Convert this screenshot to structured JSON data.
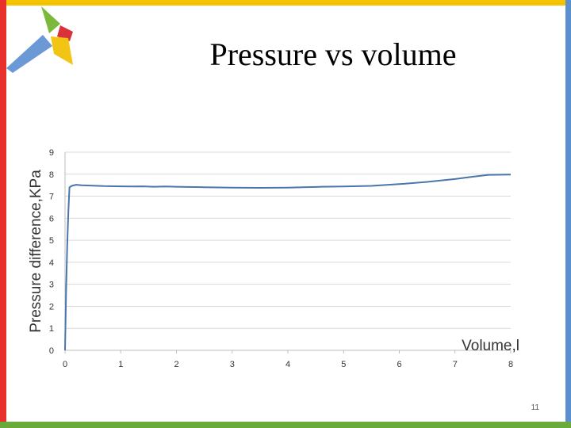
{
  "slide": {
    "title": "Pressure vs volume",
    "number": "11",
    "accent_colors": {
      "top": "#f5c400",
      "left": "#e8302c",
      "right": "#5b8fce",
      "bottom": "#6aaa3a"
    },
    "logo": "star-logo"
  },
  "chart_data": {
    "type": "line",
    "xlabel": "Volume,l",
    "ylabel": "Pressure difference,KPa",
    "xlim": [
      0,
      8
    ],
    "ylim": [
      0,
      9
    ],
    "x_ticks": [
      "0",
      "1",
      "2",
      "3",
      "4",
      "5",
      "6",
      "7",
      "8"
    ],
    "y_ticks": [
      "0",
      "1",
      "2",
      "3",
      "4",
      "5",
      "6",
      "7",
      "8",
      "9"
    ],
    "grid": "horizontal",
    "line_color": "#4a76ac",
    "series": [
      {
        "x": [
          0,
          0.02,
          0.04,
          0.06,
          0.08,
          0.12,
          0.2,
          0.3,
          0.5,
          0.7,
          1.0,
          1.2,
          1.4,
          1.6,
          1.8,
          2.0,
          2.2,
          2.5,
          3.0,
          3.5,
          4.0,
          4.5,
          4.6,
          5.0,
          5.5,
          6.0,
          6.5,
          7.0,
          7.3,
          7.6,
          8.0
        ],
        "y": [
          0,
          2.8,
          4.8,
          6.3,
          7.4,
          7.47,
          7.52,
          7.5,
          7.48,
          7.46,
          7.45,
          7.44,
          7.45,
          7.43,
          7.44,
          7.43,
          7.42,
          7.41,
          7.39,
          7.38,
          7.39,
          7.42,
          7.43,
          7.44,
          7.47,
          7.55,
          7.65,
          7.78,
          7.88,
          7.97,
          7.98
        ]
      }
    ]
  }
}
